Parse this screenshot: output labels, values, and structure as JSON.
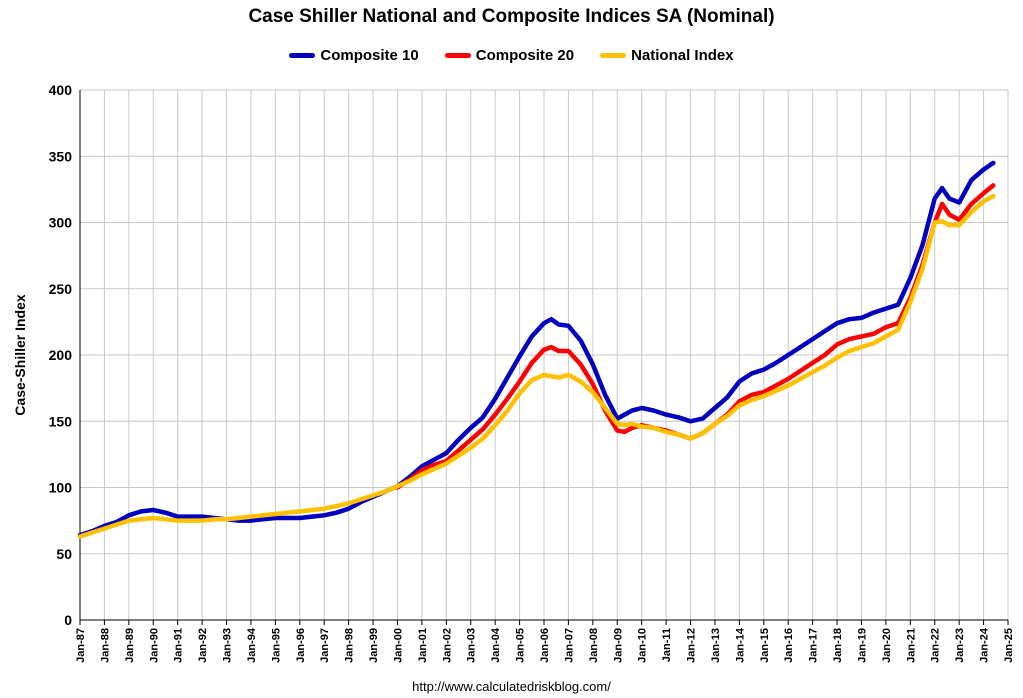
{
  "chart_data": {
    "type": "line",
    "title": "Case Shiller National and Composite Indices SA (Nominal)",
    "ylabel": "Case-Shiller Index",
    "xlabel": "",
    "ylim": [
      0,
      400
    ],
    "yticks": [
      0,
      50,
      100,
      150,
      200,
      250,
      300,
      350,
      400
    ],
    "xlim": [
      1987,
      2025
    ],
    "xtick_labels": [
      "Jan-87",
      "Jan-88",
      "Jan-89",
      "Jan-90",
      "Jan-91",
      "Jan-92",
      "Jan-93",
      "Jan-94",
      "Jan-95",
      "Jan-96",
      "Jan-97",
      "Jan-98",
      "Jan-99",
      "Jan-00",
      "Jan-01",
      "Jan-02",
      "Jan-03",
      "Jan-04",
      "Jan-05",
      "Jan-06",
      "Jan-07",
      "Jan-08",
      "Jan-09",
      "Jan-10",
      "Jan-11",
      "Jan-12",
      "Jan-13",
      "Jan-14",
      "Jan-15",
      "Jan-16",
      "Jan-17",
      "Jan-18",
      "Jan-19",
      "Jan-20",
      "Jan-21",
      "Jan-22",
      "Jan-23",
      "Jan-24",
      "Jan-25"
    ],
    "grid": true,
    "legend_position": "top-center",
    "footer": "http://www.calculatedriskblog.com/",
    "series": [
      {
        "name": "Composite 10",
        "color": "#0000C0",
        "x": [
          1987,
          1987.5,
          1988,
          1988.5,
          1989,
          1989.5,
          1990,
          1990.5,
          1991,
          1991.5,
          1992,
          1992.5,
          1993,
          1993.5,
          1994,
          1994.5,
          1995,
          1995.5,
          1996,
          1996.5,
          1997,
          1997.5,
          1998,
          1998.5,
          1999,
          1999.5,
          2000,
          2000.5,
          2001,
          2001.5,
          2002,
          2002.5,
          2003,
          2003.5,
          2004,
          2004.5,
          2005,
          2005.5,
          2006,
          2006.3,
          2006.6,
          2007,
          2007.5,
          2008,
          2008.5,
          2009,
          2009.3,
          2009.6,
          2010,
          2010.5,
          2011,
          2011.5,
          2012,
          2012.5,
          2013,
          2013.5,
          2014,
          2014.5,
          2015,
          2015.5,
          2016,
          2016.5,
          2017,
          2017.5,
          2018,
          2018.5,
          2019,
          2019.5,
          2020,
          2020.5,
          2021,
          2021.5,
          2022,
          2022.3,
          2022.6,
          2023,
          2023.5,
          2024,
          2024.4
        ],
        "values": [
          64,
          67,
          71,
          74,
          79,
          82,
          83,
          81,
          78,
          78,
          78,
          77,
          76,
          75,
          75,
          76,
          77,
          77,
          77,
          78,
          79,
          81,
          84,
          89,
          93,
          97,
          101,
          108,
          116,
          121,
          126,
          136,
          145,
          153,
          167,
          183,
          199,
          214,
          224,
          227,
          223,
          222,
          211,
          193,
          170,
          152,
          155,
          158,
          160,
          158,
          155,
          153,
          150,
          152,
          160,
          168,
          180,
          186,
          189,
          194,
          200,
          206,
          212,
          218,
          224,
          227,
          228,
          232,
          235,
          238,
          258,
          283,
          318,
          326,
          318,
          315,
          332,
          340,
          345
        ]
      },
      {
        "name": "Composite 20",
        "color": "#FF0000",
        "x": [
          2000,
          2000.5,
          2001,
          2001.5,
          2002,
          2002.5,
          2003,
          2003.5,
          2004,
          2004.5,
          2005,
          2005.5,
          2006,
          2006.3,
          2006.6,
          2007,
          2007.5,
          2008,
          2008.5,
          2009,
          2009.3,
          2009.6,
          2010,
          2010.5,
          2011,
          2011.5,
          2012,
          2012.5,
          2013,
          2013.5,
          2014,
          2014.5,
          2015,
          2015.5,
          2016,
          2016.5,
          2017,
          2017.5,
          2018,
          2018.5,
          2019,
          2019.5,
          2020,
          2020.5,
          2021,
          2021.5,
          2022,
          2022.3,
          2022.6,
          2023,
          2023.5,
          2024,
          2024.4
        ],
        "values": [
          100,
          106,
          113,
          117,
          120,
          128,
          136,
          144,
          155,
          167,
          180,
          194,
          204,
          206,
          203,
          203,
          193,
          178,
          158,
          143,
          142,
          145,
          147,
          145,
          143,
          140,
          137,
          141,
          148,
          155,
          165,
          170,
          172,
          177,
          182,
          188,
          194,
          200,
          208,
          212,
          214,
          216,
          221,
          224,
          243,
          268,
          300,
          314,
          306,
          302,
          314,
          322,
          328
        ]
      },
      {
        "name": "National Index",
        "color": "#FFC000",
        "x": [
          1987,
          1987.5,
          1988,
          1988.5,
          1989,
          1989.5,
          1990,
          1990.5,
          1991,
          1991.5,
          1992,
          1992.5,
          1993,
          1993.5,
          1994,
          1994.5,
          1995,
          1995.5,
          1996,
          1996.5,
          1997,
          1997.5,
          1998,
          1998.5,
          1999,
          1999.5,
          2000,
          2000.5,
          2001,
          2001.5,
          2002,
          2002.5,
          2003,
          2003.5,
          2004,
          2004.5,
          2005,
          2005.5,
          2006,
          2006.3,
          2006.6,
          2007,
          2007.5,
          2008,
          2008.5,
          2009,
          2009.3,
          2009.6,
          2010,
          2010.5,
          2011,
          2011.5,
          2012,
          2012.5,
          2013,
          2013.5,
          2014,
          2014.5,
          2015,
          2015.5,
          2016,
          2016.5,
          2017,
          2017.5,
          2018,
          2018.5,
          2019,
          2019.5,
          2020,
          2020.5,
          2021,
          2021.5,
          2022,
          2022.3,
          2022.6,
          2023,
          2023.5,
          2024,
          2024.4
        ],
        "values": [
          63,
          66,
          69,
          72,
          75,
          76,
          77,
          76,
          75,
          75,
          75,
          76,
          76,
          77,
          78,
          79,
          80,
          81,
          82,
          83,
          84,
          86,
          88,
          91,
          94,
          97,
          101,
          105,
          110,
          114,
          118,
          124,
          130,
          137,
          147,
          158,
          171,
          181,
          185,
          184,
          183,
          185,
          180,
          172,
          160,
          148,
          147,
          148,
          146,
          145,
          142,
          140,
          137,
          141,
          148,
          154,
          162,
          166,
          169,
          173,
          177,
          182,
          187,
          192,
          198,
          203,
          206,
          209,
          214,
          219,
          240,
          265,
          300,
          301,
          298,
          298,
          308,
          316,
          320
        ]
      }
    ]
  }
}
